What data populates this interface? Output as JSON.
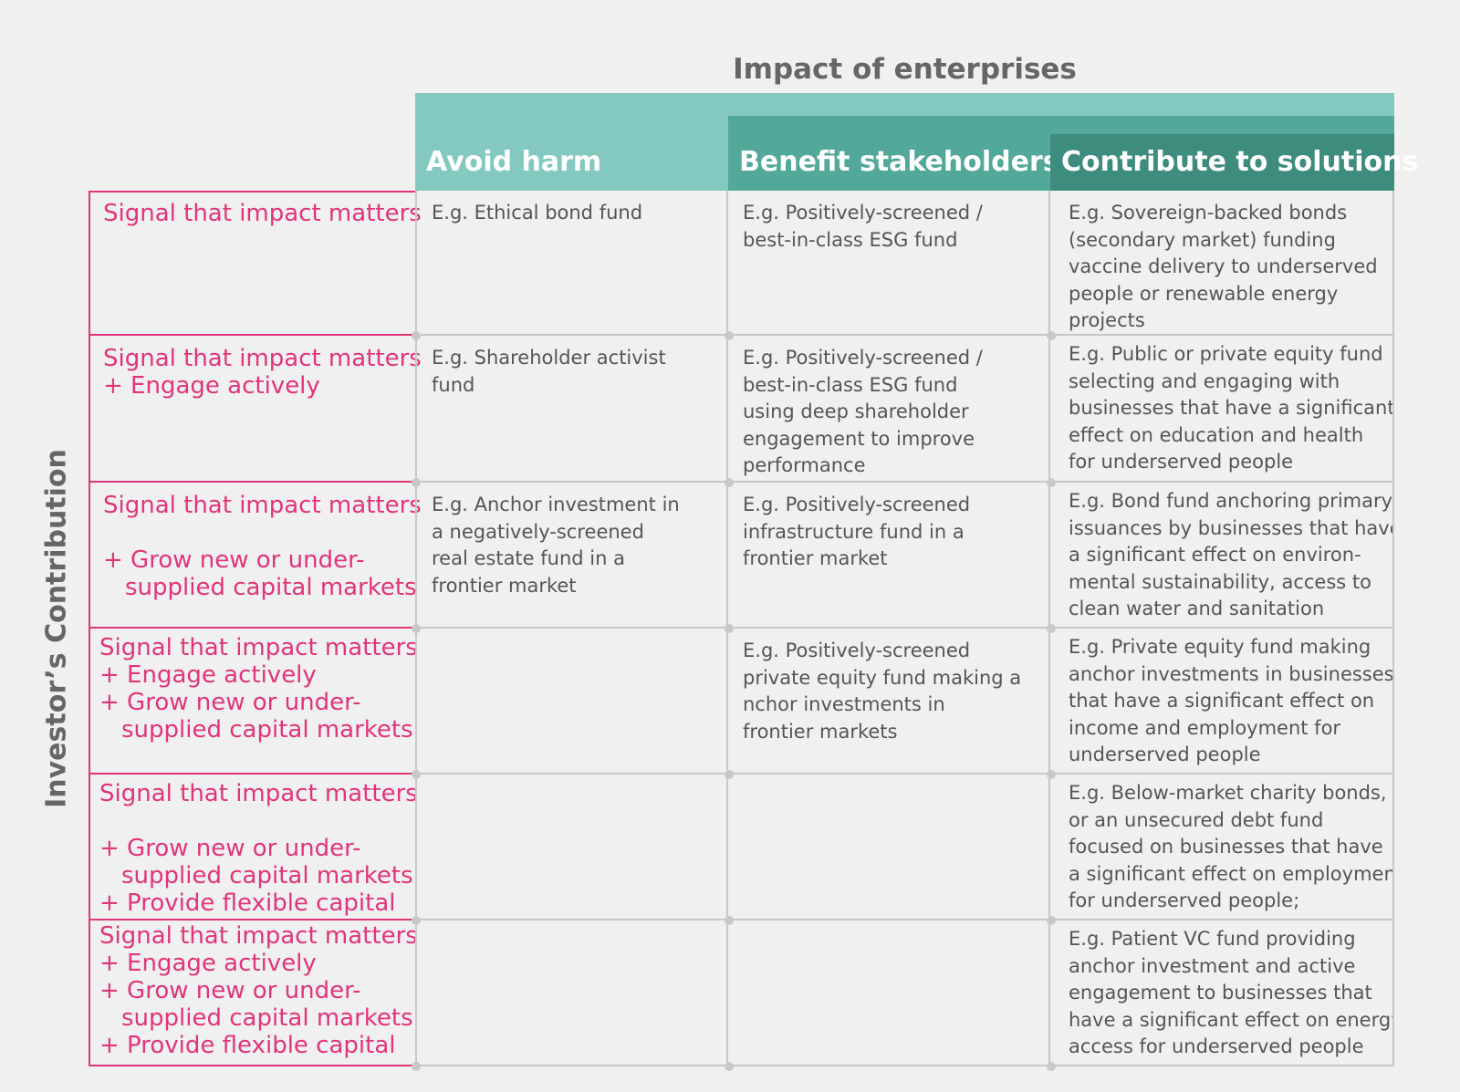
{
  "title": "Impact of enterprises",
  "y_axis_label": "Investor’s Contribution",
  "columns": [
    "Avoid harm",
    "Benefit stakeholders",
    "Contribute to solutions"
  ],
  "rows": [
    {
      "contribution": [
        [
          "Signal that impact matters"
        ]
      ],
      "cells": [
        [
          "E.g. Ethical bond fund"
        ],
        [
          "E.g. Positively-screened /",
          "best-in-class ESG fund"
        ],
        [
          "E.g. Sovereign-backed bonds",
          "(secondary market) funding",
          "vaccine delivery to underserved",
          "people or renewable energy",
          "projects"
        ]
      ]
    },
    {
      "contribution": [
        [
          "Signal that impact matters"
        ],
        [
          "+ Engage actively"
        ]
      ],
      "cells": [
        [
          "E.g. Shareholder activist",
          "fund"
        ],
        [
          "E.g. Positively-screened /",
          "best-in-class ESG fund",
          "using deep shareholder",
          "engagement to improve",
          "performance"
        ],
        [
          "E.g. Public or private equity fund",
          "selecting and engaging with",
          "businesses that have a significant",
          "effect on education and health",
          "for underserved people"
        ]
      ]
    },
    {
      "contribution": [
        [
          "Signal that impact matters"
        ],
        [
          "+ Grow new or under-",
          "supplied capital markets"
        ]
      ],
      "cells": [
        [
          "E.g. Anchor investment in",
          "a negatively-screened",
          "real estate fund in a",
          "frontier market"
        ],
        [
          "E.g. Positively-screened",
          "infrastructure fund in a",
          "frontier market"
        ],
        [
          "E.g. Bond fund anchoring primary",
          "issuances by businesses that have",
          "a significant effect on environ-",
          "mental sustainability, access to",
          "clean water and sanitation"
        ]
      ]
    },
    {
      "contribution": [
        [
          "Signal that impact matters"
        ],
        [
          "+ Engage actively"
        ],
        [
          "+ Grow new or under-",
          "supplied capital markets"
        ]
      ],
      "cells": [
        null,
        [
          "E.g. Positively-screened",
          "private equity fund making a",
          "nchor investments in",
          "frontier markets"
        ],
        [
          "E.g. Private equity fund making",
          "anchor investments in businesses",
          "that have a significant effect on",
          "income and employment for",
          "underserved people"
        ]
      ]
    },
    {
      "contribution": [
        [
          "Signal that impact matters"
        ],
        [
          "+ Grow new or under-",
          "supplied capital markets"
        ],
        [
          "+ Provide flexible capital"
        ]
      ],
      "cells": [
        null,
        null,
        [
          "E.g. Below-market charity bonds,",
          "or an unsecured debt fund",
          "focused on businesses that have",
          "a significant effect on employment",
          " for underserved people;"
        ]
      ]
    },
    {
      "contribution": [
        [
          "Signal that impact matters"
        ],
        [
          "+ Engage actively"
        ],
        [
          "+ Grow new or under-",
          "supplied capital markets"
        ],
        [
          "+ Provide flexible capital"
        ]
      ],
      "cells": [
        null,
        null,
        [
          "E.g. Patient VC fund providing",
          "anchor investment and active",
          "engagement to businesses that",
          "have a significant effect on energy",
          "access for underserved people"
        ]
      ]
    }
  ]
}
